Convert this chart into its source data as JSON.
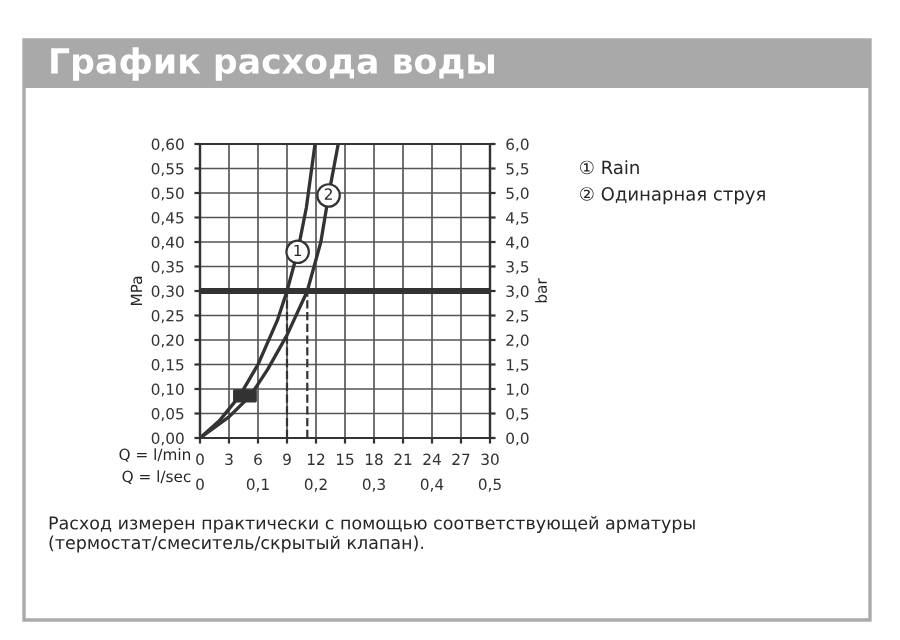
{
  "chart_data": {
    "type": "line",
    "title": "График расхода воды",
    "xlabel": "Q = l/min",
    "x2label": "Q = l/sec",
    "ylabel": "MPa",
    "y2label": "bar",
    "series": [
      {
        "name": "① Rain",
        "color": "#333333",
        "x": [
          0,
          2,
          4.1,
          6,
          8,
          9,
          10.1,
          11,
          11.9
        ],
        "values": [
          0,
          0.035,
          0.086,
          0.15,
          0.24,
          0.3,
          0.38,
          0.47,
          0.6
        ]
      },
      {
        "name": "② Одинарная струя",
        "color": "#333333",
        "x": [
          0,
          3,
          5.2,
          7,
          9,
          11.1,
          12.5,
          13.3,
          14.3
        ],
        "values": [
          0,
          0.043,
          0.086,
          0.14,
          0.21,
          0.3,
          0.4,
          0.495,
          0.6
        ]
      },
      {
        "type": "scatter",
        "marker": "square",
        "color": "#333333",
        "x": [
          4.1,
          5.2
        ],
        "values": [
          0.086,
          0.086
        ]
      }
    ],
    "xlim": [
      0,
      30
    ],
    "xticks": [
      0,
      3,
      6,
      9,
      12,
      15,
      18,
      21,
      24,
      27,
      30
    ],
    "x2lim": [
      0,
      0.5
    ],
    "x2ticks": [
      0,
      {
        "value": 0.1,
        "label": "0,1"
      },
      {
        "value": 0.2,
        "label": "0,2"
      },
      {
        "value": 0.3,
        "label": "0,3"
      },
      {
        "value": 0.4,
        "label": "0,4"
      },
      {
        "value": 0.5,
        "label": "0,5"
      }
    ],
    "ylim": [
      0,
      0.6
    ],
    "yticks": [
      {
        "value": 0,
        "label": "0,00"
      },
      {
        "value": 0.05,
        "label": "0,05"
      },
      {
        "value": 0.1,
        "label": "0,10"
      },
      {
        "value": 0.15,
        "label": "0,15"
      },
      {
        "value": 0.2,
        "label": "0,20"
      },
      {
        "value": 0.25,
        "label": "0,25"
      },
      {
        "value": 0.3,
        "label": "0,30"
      },
      {
        "value": 0.35,
        "label": "0,35"
      },
      {
        "value": 0.4,
        "label": "0,40"
      },
      {
        "value": 0.45,
        "label": "0,45"
      },
      {
        "value": 0.5,
        "label": "0,50"
      },
      {
        "value": 0.55,
        "label": "0,55"
      },
      {
        "value": 0.6,
        "label": "0,60"
      }
    ],
    "y2lim": [
      0,
      6
    ],
    "y2ticks": [
      {
        "value": 0,
        "label": "0,0"
      },
      {
        "value": 0.5,
        "label": "0,5"
      },
      {
        "value": 1,
        "label": "1,0"
      },
      {
        "value": 1.5,
        "label": "1,5"
      },
      {
        "value": 2,
        "label": "2,0"
      },
      {
        "value": 2.5,
        "label": "2,5"
      },
      {
        "value": 3,
        "label": "3,0"
      },
      {
        "value": 3.5,
        "label": "3,5"
      },
      {
        "value": 4,
        "label": "4,0"
      },
      {
        "value": 4.5,
        "label": "4,5"
      },
      {
        "value": 5,
        "label": "5,0"
      },
      {
        "value": 5.5,
        "label": "5,5"
      },
      {
        "value": 6,
        "label": "6,0"
      }
    ],
    "ref_lines": [
      {
        "axis": "y",
        "value": 0.3,
        "color": "#333333"
      },
      {
        "axis": "x",
        "value": 9,
        "line_style": "dashed",
        "color": "#333333"
      },
      {
        "axis": "x",
        "value": 11.1,
        "line_style": "dashed",
        "color": "#333333"
      }
    ],
    "annotations": [
      {
        "text": "1",
        "x": 10.1,
        "y": 0.38
      },
      {
        "text": "2",
        "x": 13.3,
        "y": 0.495
      },
      "Расход измерен практически с помощью соответствующей арматуры (термостат/смеситель/скрытый клапан)."
    ],
    "grid": true,
    "legend": "right",
    "line_style": "solid"
  }
}
